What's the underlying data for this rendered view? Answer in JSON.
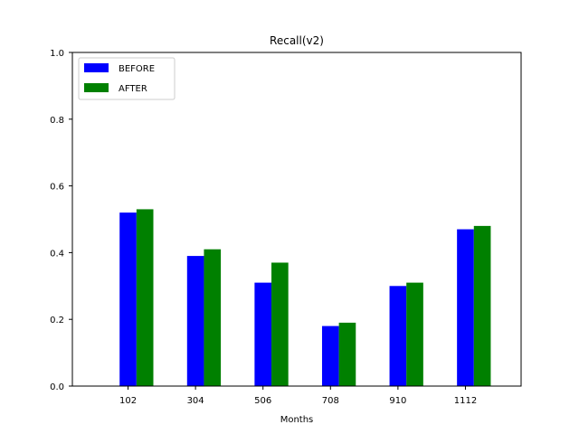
{
  "chart_data": {
    "type": "bar",
    "title": "Recall(v2)",
    "xlabel": "Months",
    "ylabel": "",
    "categories": [
      "102",
      "304",
      "506",
      "708",
      "910",
      "1112"
    ],
    "series": [
      {
        "name": "BEFORE",
        "color": "#0000ff",
        "values": [
          0.52,
          0.39,
          0.31,
          0.18,
          0.3,
          0.47
        ]
      },
      {
        "name": "AFTER",
        "color": "#008000",
        "values": [
          0.53,
          0.41,
          0.37,
          0.19,
          0.31,
          0.48
        ]
      }
    ],
    "ylim": [
      0,
      1.0
    ],
    "yticks": [
      "0.0",
      "0.2",
      "0.4",
      "0.6",
      "0.8",
      "1.0"
    ],
    "grid": false,
    "legend_position": "top-left"
  }
}
